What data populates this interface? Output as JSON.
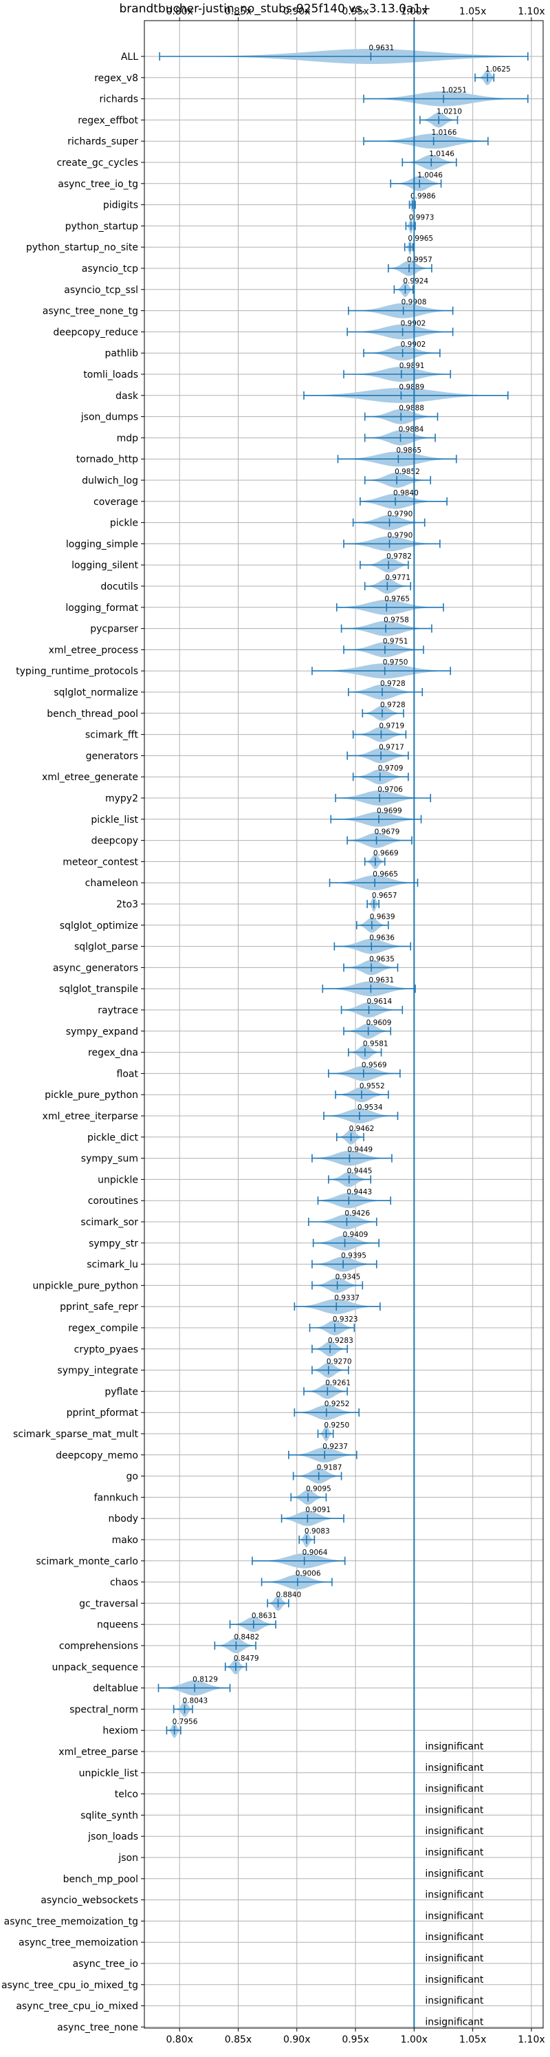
{
  "chart_data": {
    "type": "violin",
    "title": "brandtbucher-justin_no_stubs-925f140 vs. 3.13.0a1+",
    "xlabel": "",
    "ylabel": "",
    "xlim": [
      0.77,
      1.11
    ],
    "xticks": [
      0.8,
      0.85,
      0.9,
      0.95,
      1.0,
      1.05,
      1.1
    ],
    "xtick_labels": [
      "0.80x",
      "0.85x",
      "0.90x",
      "0.95x",
      "1.00x",
      "1.05x",
      "1.10x"
    ],
    "reference_line": 1.0,
    "grid": true,
    "colors": {
      "violin": "#a9cce6",
      "line": "#1f77b4",
      "grid": "#b0b0b0"
    },
    "insignificant_label": "insignificant",
    "benchmarks": [
      {
        "name": "ALL",
        "value": 0.9631,
        "min": 0.783,
        "max": 1.097
      },
      {
        "name": "regex_v8",
        "value": 1.0625,
        "min": 1.052,
        "max": 1.068
      },
      {
        "name": "richards",
        "value": 1.0251,
        "min": 0.957,
        "max": 1.097
      },
      {
        "name": "regex_effbot",
        "value": 1.021,
        "min": 1.005,
        "max": 1.037
      },
      {
        "name": "richards_super",
        "value": 1.0166,
        "min": 0.957,
        "max": 1.063
      },
      {
        "name": "create_gc_cycles",
        "value": 1.0146,
        "min": 0.99,
        "max": 1.036
      },
      {
        "name": "async_tree_io_tg",
        "value": 1.0046,
        "min": 0.98,
        "max": 1.023
      },
      {
        "name": "pidigits",
        "value": 0.9986,
        "min": 0.996,
        "max": 1.001
      },
      {
        "name": "python_startup",
        "value": 0.9973,
        "min": 0.993,
        "max": 1.001
      },
      {
        "name": "python_startup_no_site",
        "value": 0.9965,
        "min": 0.992,
        "max": 0.999
      },
      {
        "name": "asyncio_tcp",
        "value": 0.9957,
        "min": 0.978,
        "max": 1.015
      },
      {
        "name": "asyncio_tcp_ssl",
        "value": 0.9924,
        "min": 0.983,
        "max": 0.999
      },
      {
        "name": "async_tree_none_tg",
        "value": 0.9908,
        "min": 0.944,
        "max": 1.033
      },
      {
        "name": "deepcopy_reduce",
        "value": 0.9902,
        "min": 0.943,
        "max": 1.033
      },
      {
        "name": "pathlib",
        "value": 0.9902,
        "min": 0.957,
        "max": 1.022
      },
      {
        "name": "tomli_loads",
        "value": 0.9891,
        "min": 0.94,
        "max": 1.031
      },
      {
        "name": "dask",
        "value": 0.9889,
        "min": 0.906,
        "max": 1.08
      },
      {
        "name": "json_dumps",
        "value": 0.9888,
        "min": 0.958,
        "max": 1.02
      },
      {
        "name": "mdp",
        "value": 0.9884,
        "min": 0.958,
        "max": 1.018
      },
      {
        "name": "tornado_http",
        "value": 0.9865,
        "min": 0.935,
        "max": 1.036
      },
      {
        "name": "dulwich_log",
        "value": 0.9852,
        "min": 0.958,
        "max": 1.014
      },
      {
        "name": "coverage",
        "value": 0.984,
        "min": 0.954,
        "max": 1.028
      },
      {
        "name": "pickle",
        "value": 0.979,
        "min": 0.948,
        "max": 1.009
      },
      {
        "name": "logging_simple",
        "value": 0.979,
        "min": 0.94,
        "max": 1.022
      },
      {
        "name": "logging_silent",
        "value": 0.9782,
        "min": 0.954,
        "max": 0.995
      },
      {
        "name": "docutils",
        "value": 0.9771,
        "min": 0.958,
        "max": 0.997
      },
      {
        "name": "logging_format",
        "value": 0.9765,
        "min": 0.934,
        "max": 1.025
      },
      {
        "name": "pycparser",
        "value": 0.9758,
        "min": 0.938,
        "max": 1.015
      },
      {
        "name": "xml_etree_process",
        "value": 0.9751,
        "min": 0.94,
        "max": 1.008
      },
      {
        "name": "typing_runtime_protocols",
        "value": 0.975,
        "min": 0.913,
        "max": 1.031
      },
      {
        "name": "sqlglot_normalize",
        "value": 0.9728,
        "min": 0.944,
        "max": 1.007
      },
      {
        "name": "bench_thread_pool",
        "value": 0.9728,
        "min": 0.956,
        "max": 0.991
      },
      {
        "name": "scimark_fft",
        "value": 0.9719,
        "min": 0.948,
        "max": 0.993
      },
      {
        "name": "generators",
        "value": 0.9717,
        "min": 0.943,
        "max": 0.995
      },
      {
        "name": "xml_etree_generate",
        "value": 0.9709,
        "min": 0.948,
        "max": 0.995
      },
      {
        "name": "mypy2",
        "value": 0.9706,
        "min": 0.933,
        "max": 1.014
      },
      {
        "name": "pickle_list",
        "value": 0.9699,
        "min": 0.929,
        "max": 1.006
      },
      {
        "name": "deepcopy",
        "value": 0.9679,
        "min": 0.943,
        "max": 0.998
      },
      {
        "name": "meteor_contest",
        "value": 0.9669,
        "min": 0.958,
        "max": 0.975
      },
      {
        "name": "chameleon",
        "value": 0.9665,
        "min": 0.928,
        "max": 1.003
      },
      {
        "name": "2to3",
        "value": 0.9657,
        "min": 0.96,
        "max": 0.97
      },
      {
        "name": "sqlglot_optimize",
        "value": 0.9639,
        "min": 0.951,
        "max": 0.978
      },
      {
        "name": "sqlglot_parse",
        "value": 0.9636,
        "min": 0.932,
        "max": 0.997
      },
      {
        "name": "async_generators",
        "value": 0.9635,
        "min": 0.94,
        "max": 0.986
      },
      {
        "name": "sqlglot_transpile",
        "value": 0.9631,
        "min": 0.922,
        "max": 1.001
      },
      {
        "name": "raytrace",
        "value": 0.9614,
        "min": 0.938,
        "max": 0.99
      },
      {
        "name": "sympy_expand",
        "value": 0.9609,
        "min": 0.94,
        "max": 0.98
      },
      {
        "name": "regex_dna",
        "value": 0.9581,
        "min": 0.944,
        "max": 0.972
      },
      {
        "name": "float",
        "value": 0.9569,
        "min": 0.927,
        "max": 0.988
      },
      {
        "name": "pickle_pure_python",
        "value": 0.9552,
        "min": 0.933,
        "max": 0.978
      },
      {
        "name": "xml_etree_iterparse",
        "value": 0.9534,
        "min": 0.923,
        "max": 0.986
      },
      {
        "name": "pickle_dict",
        "value": 0.9462,
        "min": 0.934,
        "max": 0.957
      },
      {
        "name": "sympy_sum",
        "value": 0.9449,
        "min": 0.913,
        "max": 0.981
      },
      {
        "name": "unpickle",
        "value": 0.9445,
        "min": 0.927,
        "max": 0.963
      },
      {
        "name": "coroutines",
        "value": 0.9443,
        "min": 0.918,
        "max": 0.98
      },
      {
        "name": "scimark_sor",
        "value": 0.9426,
        "min": 0.91,
        "max": 0.968
      },
      {
        "name": "sympy_str",
        "value": 0.9409,
        "min": 0.914,
        "max": 0.97
      },
      {
        "name": "scimark_lu",
        "value": 0.9395,
        "min": 0.913,
        "max": 0.968
      },
      {
        "name": "unpickle_pure_python",
        "value": 0.9345,
        "min": 0.913,
        "max": 0.956
      },
      {
        "name": "pprint_safe_repr",
        "value": 0.9337,
        "min": 0.898,
        "max": 0.971
      },
      {
        "name": "regex_compile",
        "value": 0.9323,
        "min": 0.911,
        "max": 0.949
      },
      {
        "name": "crypto_pyaes",
        "value": 0.9283,
        "min": 0.913,
        "max": 0.943
      },
      {
        "name": "sympy_integrate",
        "value": 0.927,
        "min": 0.913,
        "max": 0.944
      },
      {
        "name": "pyflate",
        "value": 0.9261,
        "min": 0.906,
        "max": 0.943
      },
      {
        "name": "pprint_pformat",
        "value": 0.9252,
        "min": 0.898,
        "max": 0.953
      },
      {
        "name": "scimark_sparse_mat_mult",
        "value": 0.925,
        "min": 0.918,
        "max": 0.931
      },
      {
        "name": "deepcopy_memo",
        "value": 0.9237,
        "min": 0.893,
        "max": 0.951
      },
      {
        "name": "go",
        "value": 0.9187,
        "min": 0.897,
        "max": 0.938
      },
      {
        "name": "fannkuch",
        "value": 0.9095,
        "min": 0.895,
        "max": 0.925
      },
      {
        "name": "nbody",
        "value": 0.9091,
        "min": 0.887,
        "max": 0.94
      },
      {
        "name": "mako",
        "value": 0.9083,
        "min": 0.902,
        "max": 0.915
      },
      {
        "name": "scimark_monte_carlo",
        "value": 0.9064,
        "min": 0.862,
        "max": 0.941
      },
      {
        "name": "chaos",
        "value": 0.9006,
        "min": 0.87,
        "max": 0.93
      },
      {
        "name": "gc_traversal",
        "value": 0.884,
        "min": 0.875,
        "max": 0.893
      },
      {
        "name": "nqueens",
        "value": 0.8631,
        "min": 0.843,
        "max": 0.882
      },
      {
        "name": "comprehensions",
        "value": 0.8482,
        "min": 0.83,
        "max": 0.865
      },
      {
        "name": "unpack_sequence",
        "value": 0.8479,
        "min": 0.839,
        "max": 0.857
      },
      {
        "name": "deltablue",
        "value": 0.8129,
        "min": 0.782,
        "max": 0.843
      },
      {
        "name": "spectral_norm",
        "value": 0.8043,
        "min": 0.795,
        "max": 0.811
      },
      {
        "name": "hexiom",
        "value": 0.7956,
        "min": 0.789,
        "max": 0.801
      }
    ],
    "insignificant": [
      "xml_etree_parse",
      "unpickle_list",
      "telco",
      "sqlite_synth",
      "json_loads",
      "json",
      "bench_mp_pool",
      "asyncio_websockets",
      "async_tree_memoization_tg",
      "async_tree_memoization",
      "async_tree_io",
      "async_tree_cpu_io_mixed_tg",
      "async_tree_cpu_io_mixed",
      "async_tree_none"
    ]
  }
}
